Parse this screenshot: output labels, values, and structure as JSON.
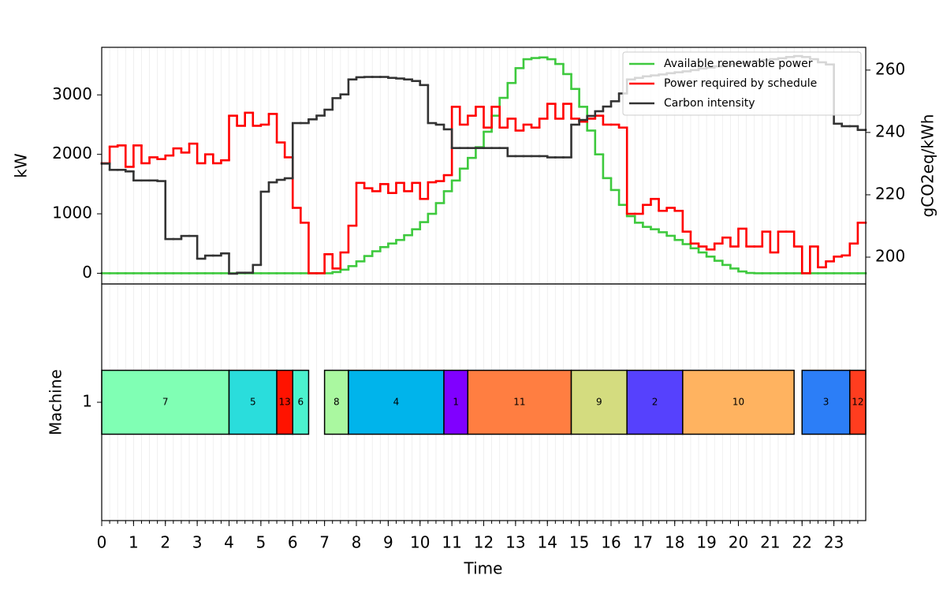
{
  "chart_data": [
    {
      "type": "line",
      "ylabel": "kW",
      "y2label": "gCO2eq/kWh",
      "x": [
        0,
        0.25,
        0.5,
        0.75,
        1,
        1.25,
        1.5,
        1.75,
        2,
        2.25,
        2.5,
        2.75,
        3,
        3.25,
        3.5,
        3.75,
        4,
        4.25,
        4.5,
        4.75,
        5,
        5.25,
        5.5,
        5.75,
        6,
        6.25,
        6.5,
        6.75,
        7,
        7.25,
        7.5,
        7.75,
        8,
        8.25,
        8.5,
        8.75,
        9,
        9.25,
        9.5,
        9.75,
        10,
        10.25,
        10.5,
        10.75,
        11,
        11.25,
        11.5,
        11.75,
        12,
        12.25,
        12.5,
        12.75,
        13,
        13.25,
        13.5,
        13.75,
        14,
        14.25,
        14.5,
        14.75,
        15,
        15.25,
        15.5,
        15.75,
        16,
        16.25,
        16.5,
        16.75,
        17,
        17.25,
        17.5,
        17.75,
        18,
        18.25,
        18.5,
        18.75,
        19,
        19.25,
        19.5,
        19.75,
        20,
        20.25,
        20.5,
        20.75,
        21,
        21.25,
        21.5,
        21.75,
        22,
        22.25,
        22.5,
        22.75,
        23,
        23.25,
        23.5,
        23.75
      ],
      "xlim": [
        0,
        24
      ],
      "ylim": [
        -180,
        3800
      ],
      "yticks": [
        0,
        1000,
        2000,
        3000
      ],
      "y2lim": [
        191.4,
        267.3
      ],
      "y2ticks": [
        200,
        220,
        240,
        260
      ],
      "grid": true,
      "legend": "upper right",
      "series": [
        {
          "name": "Available renewable power",
          "color": "#3ec93e",
          "values": [
            0,
            0,
            0,
            0,
            0,
            0,
            0,
            0,
            0,
            0,
            0,
            0,
            0,
            0,
            0,
            0,
            0,
            0,
            0,
            0,
            0,
            0,
            0,
            0,
            0,
            0,
            0,
            0,
            0,
            20,
            60,
            120,
            200,
            290,
            370,
            440,
            500,
            560,
            640,
            740,
            860,
            1000,
            1180,
            1380,
            1560,
            1760,
            1940,
            2120,
            2380,
            2650,
            2950,
            3200,
            3450,
            3600,
            3620,
            3630,
            3600,
            3520,
            3350,
            3100,
            2800,
            2400,
            2000,
            1600,
            1400,
            1150,
            960,
            850,
            780,
            740,
            690,
            630,
            560,
            490,
            420,
            350,
            280,
            210,
            140,
            80,
            30,
            5,
            0,
            0,
            0,
            0,
            0,
            0,
            0,
            0,
            0,
            0,
            0,
            0,
            0,
            0
          ]
        },
        {
          "name": "Power required by schedule",
          "color": "#ff0000",
          "values": [
            1850,
            2130,
            2150,
            1790,
            2150,
            1850,
            1950,
            1920,
            1980,
            2100,
            2030,
            2180,
            1850,
            2000,
            1850,
            1900,
            2650,
            2480,
            2700,
            2480,
            2500,
            2680,
            2200,
            1950,
            1100,
            850,
            0,
            0,
            320,
            80,
            350,
            800,
            1520,
            1430,
            1380,
            1500,
            1350,
            1520,
            1380,
            1520,
            1250,
            1530,
            1550,
            1650,
            2800,
            2500,
            2650,
            2800,
            2450,
            2800,
            2450,
            2600,
            2400,
            2500,
            2450,
            2600,
            2850,
            2600,
            2850,
            2600,
            2550,
            2600,
            2650,
            2500,
            2500,
            2450,
            1000,
            1000,
            1150,
            1250,
            1050,
            1100,
            1050,
            700,
            500,
            450,
            400,
            500,
            600,
            450,
            750,
            450,
            450,
            700,
            350,
            700,
            700,
            450,
            0,
            450,
            100,
            200,
            280,
            300,
            500,
            850
          ]
        },
        {
          "name": "Carbon intensity",
          "color": "#333333",
          "axis": "y2",
          "values": [
            230,
            228,
            228,
            227.5,
            224.6,
            224.6,
            224.6,
            224.4,
            205.8,
            205.8,
            206.8,
            206.8,
            199.5,
            200.5,
            200.5,
            201.2,
            194.7,
            195,
            195,
            197.5,
            221,
            224,
            224.8,
            225.3,
            243,
            243,
            244.2,
            245.4,
            247.3,
            251,
            252.2,
            257,
            257.7,
            257.8,
            257.8,
            257.8,
            257.5,
            257.3,
            257,
            256.5,
            255.2,
            243,
            242.5,
            241,
            235,
            235,
            235,
            235,
            235,
            235,
            235,
            232.4,
            232.4,
            232.4,
            232.4,
            232.4,
            232,
            232,
            232,
            242.5,
            244,
            245.3,
            246.8,
            248.3,
            250,
            252.5,
            257,
            257.5,
            258,
            258.3,
            258.6,
            259,
            259.3,
            259.6,
            260,
            260.5,
            260.8,
            261.2,
            261.6,
            262,
            262.3,
            262.6,
            262.9,
            263.2,
            263.5,
            263.8,
            264.2,
            264.5,
            264.2,
            263.5,
            262.5,
            261.8,
            242.8,
            242,
            242,
            240.8
          ]
        }
      ]
    },
    {
      "type": "gantt",
      "xlabel": "Time",
      "ylabel": "Machine",
      "xlim": [
        0,
        24
      ],
      "xticks": [
        0,
        1,
        2,
        3,
        4,
        5,
        6,
        7,
        8,
        9,
        10,
        11,
        12,
        13,
        14,
        15,
        16,
        17,
        18,
        19,
        20,
        21,
        22,
        23
      ],
      "ylim": [
        0,
        2
      ],
      "yticks": [
        1
      ],
      "grid": true,
      "tasks": [
        {
          "label": "7",
          "machine": 1,
          "start": 0,
          "end": 4,
          "color": "#80ffb4"
        },
        {
          "label": "5",
          "machine": 1,
          "start": 4,
          "end": 5.5,
          "color": "#2adddc"
        },
        {
          "label": "13",
          "machine": 1,
          "start": 5.5,
          "end": 6,
          "color": "#ff1300"
        },
        {
          "label": "6",
          "machine": 1,
          "start": 6,
          "end": 6.5,
          "color": "#4cf2ce"
        },
        {
          "label": "8",
          "machine": 1,
          "start": 7,
          "end": 7.75,
          "color": "#aaf8a0"
        },
        {
          "label": "4",
          "machine": 1,
          "start": 7.75,
          "end": 10.75,
          "color": "#00b4eb"
        },
        {
          "label": "1",
          "machine": 1,
          "start": 10.75,
          "end": 11.5,
          "color": "#8000ff"
        },
        {
          "label": "11",
          "machine": 1,
          "start": 11.5,
          "end": 14.75,
          "color": "#ff7e41"
        },
        {
          "label": "9",
          "machine": 1,
          "start": 14.75,
          "end": 16.5,
          "color": "#d4dc7f"
        },
        {
          "label": "2",
          "machine": 1,
          "start": 16.5,
          "end": 18.25,
          "color": "#5641fd"
        },
        {
          "label": "10",
          "machine": 1,
          "start": 18.25,
          "end": 21.75,
          "color": "#ffb360"
        },
        {
          "label": "3",
          "machine": 1,
          "start": 22,
          "end": 23.5,
          "color": "#2c7ef7"
        },
        {
          "label": "12",
          "machine": 1,
          "start": 23.5,
          "end": 24,
          "color": "#ff3d1f"
        }
      ]
    }
  ]
}
